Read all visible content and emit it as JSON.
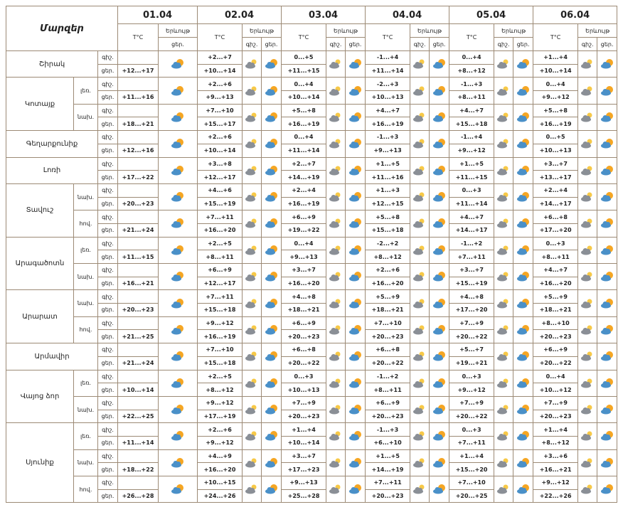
{
  "header": {
    "region_label": "Մարզեր",
    "dates": [
      "01.04",
      "02.04",
      "03.04",
      "04.04",
      "05.04",
      "06.04"
    ],
    "temp_label": "T°C",
    "phenomenon_label": "Երևույթ",
    "night_label": "գիշ.",
    "day_label": "ցեր."
  },
  "regions": [
    {
      "name": "Շիրակ",
      "zones": [
        {
          "night": [
            null,
            "+2...+7",
            "0...+5",
            "-1...+4",
            "0...+4",
            "+1...+4"
          ],
          "day": [
            "+12...+17",
            "+10...+14",
            "+11...+15",
            "+11...+14",
            "+8...+12",
            "+10...+14"
          ]
        }
      ]
    },
    {
      "name": "Կոտայք",
      "zones": [
        {
          "zone": "լեռ.",
          "night": [
            null,
            "+2...+6",
            "0...+4",
            "-2...+3",
            "-1...+3",
            "0...+4"
          ],
          "day": [
            "+11...+16",
            "+9...+13",
            "+10...+14",
            "+10...+13",
            "+8...+11",
            "+9...+12"
          ]
        },
        {
          "zone": "նախ.",
          "night": [
            null,
            "+7...+10",
            "+5...+8",
            "+4...+7",
            "+4...+7",
            "+5...+8"
          ],
          "day": [
            "+18...+21",
            "+15...+17",
            "+16...+19",
            "+16...+19",
            "+15...+18",
            "+16...+19"
          ]
        }
      ]
    },
    {
      "name": "Գեղարքունիք",
      "zones": [
        {
          "night": [
            null,
            "+2...+6",
            "0...+4",
            "-1...+3",
            "-1...+4",
            "0...+5"
          ],
          "day": [
            "+12...+16",
            "+10...+14",
            "+11...+14",
            "+9...+13",
            "+9...+12",
            "+10...+13"
          ]
        }
      ]
    },
    {
      "name": "Լոռի",
      "zones": [
        {
          "night": [
            null,
            "+3...+8",
            "+2...+7",
            "+1...+5",
            "+1...+5",
            "+3...+7"
          ],
          "day": [
            "+17...+22",
            "+12...+17",
            "+14...+19",
            "+11...+16",
            "+11...+15",
            "+13...+17"
          ]
        }
      ]
    },
    {
      "name": "Տավուշ",
      "zones": [
        {
          "zone": "նախ.",
          "night": [
            null,
            "+4...+6",
            "+2...+4",
            "+1...+3",
            "0...+3",
            "+2...+4"
          ],
          "day": [
            "+20...+23",
            "+15...+19",
            "+16...+19",
            "+12...+15",
            "+11...+14",
            "+14...+17"
          ]
        },
        {
          "zone": "հով.",
          "night": [
            null,
            "+7...+11",
            "+6...+9",
            "+5...+8",
            "+4...+7",
            "+6...+8"
          ],
          "day": [
            "+21...+24",
            "+16...+20",
            "+19...+22",
            "+15...+18",
            "+14...+17",
            "+17...+20"
          ]
        }
      ]
    },
    {
      "name": "Արագածոտն",
      "zones": [
        {
          "zone": "լեռ.",
          "night": [
            null,
            "+2...+5",
            "0...+4",
            "-2...+2",
            "-1...+2",
            "0...+3"
          ],
          "day": [
            "+11...+15",
            "+8...+11",
            "+9...+13",
            "+8...+12",
            "+7...+11",
            "+8...+11"
          ]
        },
        {
          "zone": "նախ.",
          "night": [
            null,
            "+6...+9",
            "+3...+7",
            "+2...+6",
            "+3...+7",
            "+4...+7"
          ],
          "day": [
            "+16...+21",
            "+12...+17",
            "+16...+20",
            "+16...+20",
            "+15...+19",
            "+16...+20"
          ]
        }
      ]
    },
    {
      "name": "Արարատ",
      "zones": [
        {
          "zone": "նախ.",
          "night": [
            null,
            "+7...+11",
            "+4...+8",
            "+5...+9",
            "+4...+8",
            "+5...+9"
          ],
          "day": [
            "+20...+23",
            "+15...+18",
            "+18...+21",
            "+18...+21",
            "+17...+20",
            "+18...+21"
          ]
        },
        {
          "zone": "հով.",
          "night": [
            null,
            "+9...+12",
            "+6...+9",
            "+7...+10",
            "+7...+9",
            "+8...+10"
          ],
          "day": [
            "+21...+25",
            "+16...+19",
            "+20...+23",
            "+20...+23",
            "+20...+22",
            "+20...+23"
          ]
        }
      ]
    },
    {
      "name": "Արմավիր",
      "zones": [
        {
          "night": [
            null,
            "+7...+10",
            "+6...+8",
            "+6...+8",
            "+5...+7",
            "+6...+9"
          ],
          "day": [
            "+21...+24",
            "+15...+18",
            "+20...+22",
            "+20...+22",
            "+19...+21",
            "+20...+22"
          ]
        }
      ]
    },
    {
      "name": "Վայոց ձոր",
      "zones": [
        {
          "zone": "լեռ.",
          "night": [
            null,
            "+2...+5",
            "0...+3",
            "-1...+2",
            "0...+3",
            "0...+4"
          ],
          "day": [
            "+10...+14",
            "+8...+12",
            "+10...+13",
            "+8...+11",
            "+9...+12",
            "+10...+12"
          ]
        },
        {
          "zone": "նախ.",
          "night": [
            null,
            "+9...+12",
            "+7...+9",
            "+6...+9",
            "+7...+9",
            "+7...+9"
          ],
          "day": [
            "+22...+25",
            "+17...+19",
            "+20...+23",
            "+20...+23",
            "+20...+22",
            "+20...+23"
          ]
        }
      ]
    },
    {
      "name": "Սյունիք",
      "zones": [
        {
          "zone": "լեռ.",
          "night": [
            null,
            "+2...+6",
            "+1...+4",
            "-1...+3",
            "0...+3",
            "+1...+4"
          ],
          "day": [
            "+11...+14",
            "+9...+12",
            "+10...+14",
            "+6...+10",
            "+7...+11",
            "+8...+12"
          ]
        },
        {
          "zone": "նախ.",
          "night": [
            null,
            "+4...+9",
            "+3...+7",
            "+1...+5",
            "+1...+4",
            "+3...+6"
          ],
          "day": [
            "+18...+22",
            "+16...+20",
            "+17...+23",
            "+14...+19",
            "+15...+20",
            "+16...+21"
          ]
        },
        {
          "zone": "հով.",
          "night": [
            null,
            "+10...+15",
            "+9...+13",
            "+7...+11",
            "+7...+10",
            "+9...+12"
          ],
          "day": [
            "+26...+28",
            "+24...+26",
            "+25...+28",
            "+20...+23",
            "+20...+25",
            "+22...+26"
          ]
        }
      ]
    }
  ]
}
